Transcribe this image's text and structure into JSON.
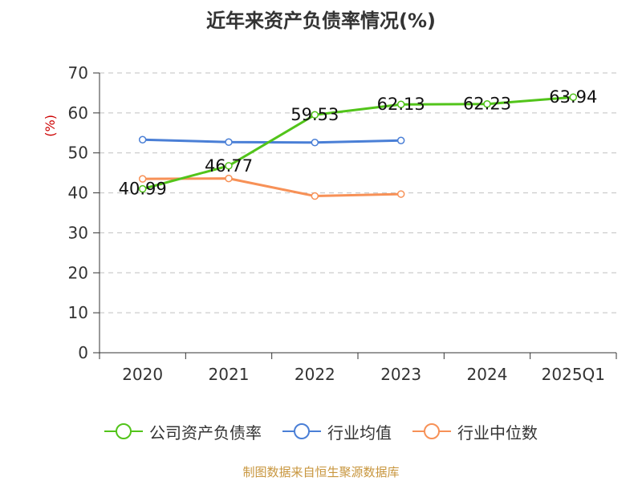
{
  "colors": {
    "company": "#52c41a",
    "industry_avg": "#4a7fd6",
    "industry_median": "#f79157",
    "grid": "#c0c0c0",
    "axis": "#333333",
    "ylabel": "#cc0000",
    "source": "#c8963e"
  },
  "chart_data": {
    "type": "line",
    "title": "近年来资产负债率情况(%)",
    "ylabel": "(%)",
    "ylim": [
      0,
      70
    ],
    "yticks": [
      0,
      10,
      20,
      30,
      40,
      50,
      60,
      70
    ],
    "categories": [
      "2020",
      "2021",
      "2022",
      "2023",
      "2024",
      "2025Q1"
    ],
    "grid": "horizontal-dashed",
    "legend_position": "bottom",
    "series": [
      {
        "name": "公司资产负债率",
        "color_key": "company",
        "values": [
          40.99,
          46.77,
          59.53,
          62.13,
          62.23,
          63.94
        ],
        "value_labels": [
          "40.99",
          "46.77",
          "59.53",
          "62.13",
          "62.23",
          "63.94"
        ]
      },
      {
        "name": "行业均值",
        "color_key": "industry_avg",
        "values": [
          53.3,
          52.7,
          52.6,
          53.1,
          null,
          null
        ]
      },
      {
        "name": "行业中位数",
        "color_key": "industry_median",
        "values": [
          43.5,
          43.6,
          39.2,
          39.7,
          null,
          null
        ]
      }
    ]
  },
  "source_note": "制图数据来自恒生聚源数据库"
}
